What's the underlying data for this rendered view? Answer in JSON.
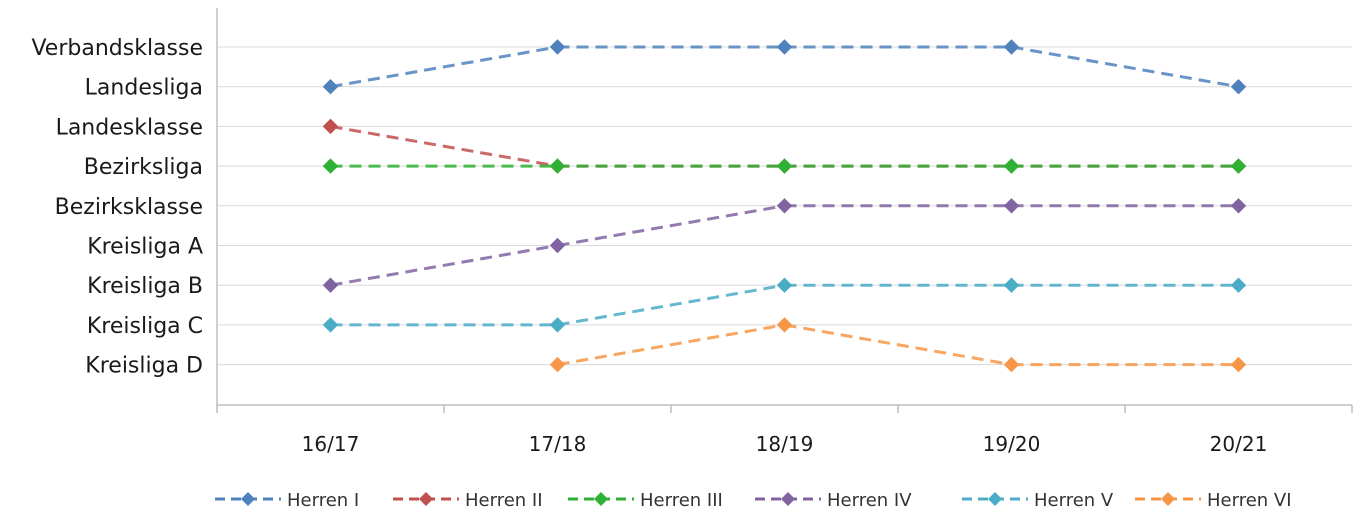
{
  "chart_data": {
    "type": "line",
    "categories": [
      "16/17",
      "17/18",
      "18/19",
      "19/20",
      "20/21"
    ],
    "levels": [
      "Kreisliga D",
      "Kreisliga C",
      "Kreisliga B",
      "Kreisliga A",
      "Bezirksklasse",
      "Bezirksliga",
      "Landesklasse",
      "Landesliga",
      "Verbandsklasse"
    ],
    "series": [
      {
        "name": "Herren I",
        "color": "#4f81bd",
        "values": [
          "Landesliga",
          "Verbandsklasse",
          "Verbandsklasse",
          "Verbandsklasse",
          "Landesliga"
        ]
      },
      {
        "name": "Herren II",
        "color": "#c0504d",
        "values": [
          "Landesklasse",
          "Bezirksliga",
          "Bezirksliga",
          "Bezirksliga",
          "Bezirksliga"
        ]
      },
      {
        "name": "Herren III",
        "color": "#2eb135",
        "values": [
          "Bezirksliga",
          "Bezirksliga",
          "Bezirksliga",
          "Bezirksliga",
          "Bezirksliga"
        ]
      },
      {
        "name": "Herren IV",
        "color": "#8064a2",
        "values": [
          "Kreisliga B",
          "Kreisliga A",
          "Bezirksklasse",
          "Bezirksklasse",
          "Bezirksklasse"
        ]
      },
      {
        "name": "Herren V",
        "color": "#4bacc6",
        "values": [
          "Kreisliga C",
          "Kreisliga C",
          "Kreisliga B",
          "Kreisliga B",
          "Kreisliga B"
        ]
      },
      {
        "name": "Herren VI",
        "color": "#f79646",
        "values": [
          null,
          "Kreisliga D",
          "Kreisliga C",
          "Kreisliga D",
          "Kreisliga D"
        ]
      }
    ],
    "grid": true,
    "legend_position": "bottom",
    "line_style": "dashed",
    "marker": "diamond"
  }
}
